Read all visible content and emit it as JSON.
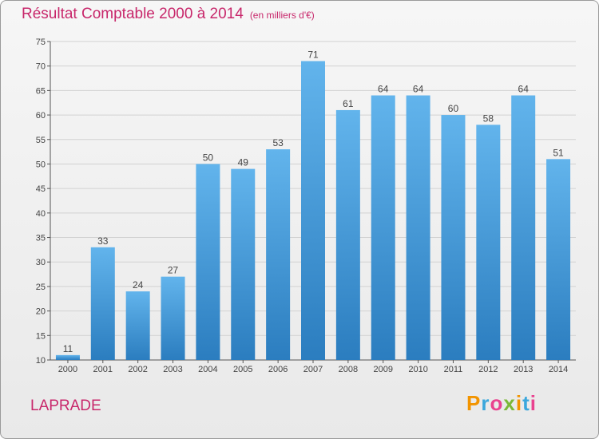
{
  "title": "Résultat Comptable 2000 à 2014",
  "unit": "(en milliers d'€)",
  "commune": "LAPRADE",
  "logo": {
    "letters": [
      "P",
      "r",
      "o",
      "x",
      "i",
      "t",
      "i"
    ],
    "colors": [
      "#f29400",
      "#3aa7dc",
      "#e9428f",
      "#7bb838",
      "#f29400",
      "#3aa7dc",
      "#e9428f"
    ]
  },
  "chart_data": {
    "type": "bar",
    "categories": [
      "2000",
      "2001",
      "2002",
      "2003",
      "2004",
      "2005",
      "2006",
      "2007",
      "2008",
      "2009",
      "2010",
      "2011",
      "2012",
      "2013",
      "2014"
    ],
    "values": [
      11,
      33,
      24,
      27,
      50,
      49,
      53,
      71,
      61,
      64,
      64,
      60,
      58,
      64,
      51
    ],
    "ylim": [
      10,
      75
    ],
    "yticks": [
      10,
      15,
      20,
      25,
      30,
      35,
      40,
      45,
      50,
      55,
      60,
      65,
      70,
      75
    ],
    "grid": true,
    "colors": {
      "bar_top": "#62b4ec",
      "bar_bottom": "#2b7dbf",
      "grid": "#d2d2d2"
    }
  }
}
